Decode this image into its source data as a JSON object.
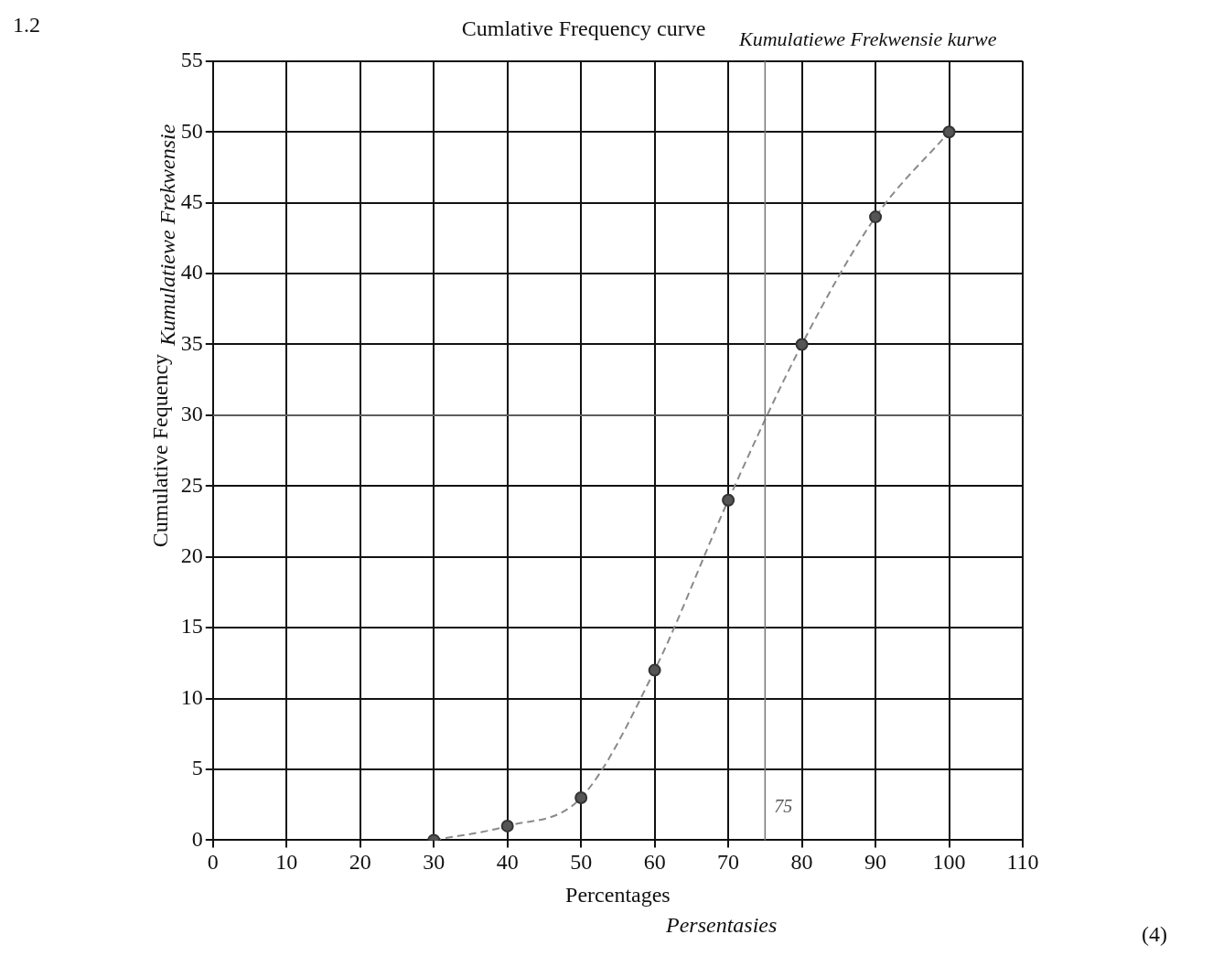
{
  "chart_data": {
    "type": "line",
    "title": "Cumlative Frequency curve",
    "subtitle": "Kumulatiewe Frekwensie kurwe",
    "xlabel": "Percentages",
    "ylabel": "Cumulative Fequency",
    "annotations": [
      "Persentasies",
      "Kumulatiewe Frekwensie",
      "1.2",
      "(4)"
    ],
    "x": [
      30,
      40,
      50,
      60,
      70,
      80,
      90,
      100
    ],
    "series": [
      {
        "color": "#8a8a8a",
        "values": [
          0,
          1,
          3,
          12,
          24,
          35,
          44,
          50
        ]
      }
    ],
    "xlim": [
      0,
      110
    ],
    "xticks": [
      0,
      10,
      20,
      30,
      40,
      50,
      60,
      70,
      80,
      90,
      100,
      110
    ],
    "ylim": [
      0,
      55
    ],
    "yticks": [
      0,
      5,
      10,
      15,
      20,
      25,
      30,
      35,
      40,
      45,
      50,
      55
    ],
    "grid": true,
    "marker": "circle",
    "line_style": "dashed",
    "legend": false,
    "ref_lines": [
      {
        "axis": "y",
        "value": 30,
        "color": "#777777"
      },
      {
        "axis": "x",
        "value": 75,
        "label": "75",
        "color": "#777777"
      }
    ]
  }
}
